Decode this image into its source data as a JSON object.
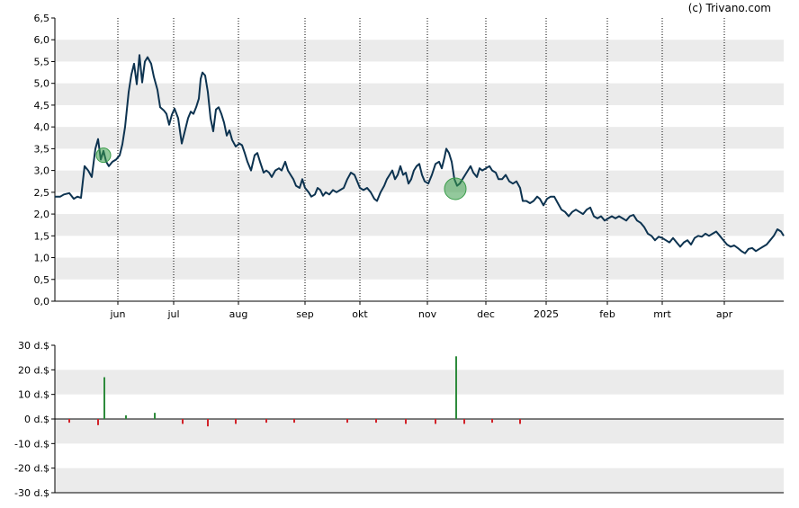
{
  "watermark": "(c) Trivano.com",
  "chart_data": [
    {
      "type": "line",
      "grid": true,
      "ylim": [
        0,
        6.5
      ],
      "y_ticks": [
        "0,0",
        "0,5",
        "1,0",
        "1,5",
        "2,0",
        "2,5",
        "3,0",
        "3,5",
        "4,0",
        "4,5",
        "5,0",
        "5,5",
        "6,0",
        "6,5"
      ],
      "x_ticks": [
        {
          "label": "jun",
          "t": 70
        },
        {
          "label": "jul",
          "t": 132
        },
        {
          "label": "aug",
          "t": 204
        },
        {
          "label": "sep",
          "t": 278
        },
        {
          "label": "okt",
          "t": 339
        },
        {
          "label": "nov",
          "t": 414
        },
        {
          "label": "dec",
          "t": 479
        },
        {
          "label": "2025",
          "t": 546
        },
        {
          "label": "feb",
          "t": 614
        },
        {
          "label": "mrt",
          "t": 675
        },
        {
          "label": "apr",
          "t": 744
        }
      ],
      "t_range": [
        0,
        810
      ],
      "series": [
        {
          "color": "#0d3350",
          "points": [
            [
              0,
              2.4
            ],
            [
              6,
              2.4
            ],
            [
              10,
              2.45
            ],
            [
              16,
              2.48
            ],
            [
              21,
              2.35
            ],
            [
              25,
              2.4
            ],
            [
              29,
              2.37
            ],
            [
              33,
              3.1
            ],
            [
              37,
              3.0
            ],
            [
              41,
              2.85
            ],
            [
              45,
              3.5
            ],
            [
              48,
              3.72
            ],
            [
              51,
              3.25
            ],
            [
              54,
              3.45
            ],
            [
              57,
              3.2
            ],
            [
              60,
              3.1
            ],
            [
              64,
              3.2
            ],
            [
              68,
              3.25
            ],
            [
              72,
              3.35
            ],
            [
              75,
              3.6
            ],
            [
              78,
              4.0
            ],
            [
              82,
              4.8
            ],
            [
              85,
              5.2
            ],
            [
              88,
              5.45
            ],
            [
              91,
              4.98
            ],
            [
              94,
              5.65
            ],
            [
              97,
              5.02
            ],
            [
              100,
              5.5
            ],
            [
              103,
              5.6
            ],
            [
              107,
              5.45
            ],
            [
              110,
              5.15
            ],
            [
              114,
              4.85
            ],
            [
              117,
              4.45
            ],
            [
              121,
              4.38
            ],
            [
              124,
              4.3
            ],
            [
              127,
              4.05
            ],
            [
              130,
              4.28
            ],
            [
              133,
              4.42
            ],
            [
              137,
              4.2
            ],
            [
              141,
              3.62
            ],
            [
              145,
              3.95
            ],
            [
              148,
              4.2
            ],
            [
              151,
              4.35
            ],
            [
              154,
              4.3
            ],
            [
              157,
              4.45
            ],
            [
              160,
              4.65
            ],
            [
              162,
              5.1
            ],
            [
              164,
              5.25
            ],
            [
              167,
              5.18
            ],
            [
              170,
              4.8
            ],
            [
              173,
              4.2
            ],
            [
              176,
              3.9
            ],
            [
              179,
              4.4
            ],
            [
              182,
              4.45
            ],
            [
              185,
              4.3
            ],
            [
              188,
              4.1
            ],
            [
              191,
              3.8
            ],
            [
              194,
              3.92
            ],
            [
              197,
              3.7
            ],
            [
              201,
              3.55
            ],
            [
              205,
              3.62
            ],
            [
              208,
              3.58
            ],
            [
              211,
              3.4
            ],
            [
              214,
              3.2
            ],
            [
              218,
              3.0
            ],
            [
              222,
              3.35
            ],
            [
              225,
              3.4
            ],
            [
              228,
              3.2
            ],
            [
              232,
              2.95
            ],
            [
              235,
              3.0
            ],
            [
              238,
              2.95
            ],
            [
              241,
              2.85
            ],
            [
              245,
              3.0
            ],
            [
              249,
              3.05
            ],
            [
              252,
              3.0
            ],
            [
              256,
              3.2
            ],
            [
              259,
              3.0
            ],
            [
              262,
              2.9
            ],
            [
              265,
              2.8
            ],
            [
              268,
              2.65
            ],
            [
              272,
              2.6
            ],
            [
              275,
              2.8
            ],
            [
              278,
              2.6
            ],
            [
              282,
              2.5
            ],
            [
              285,
              2.4
            ],
            [
              289,
              2.45
            ],
            [
              292,
              2.6
            ],
            [
              295,
              2.55
            ],
            [
              298,
              2.42
            ],
            [
              301,
              2.5
            ],
            [
              305,
              2.45
            ],
            [
              309,
              2.55
            ],
            [
              313,
              2.5
            ],
            [
              317,
              2.55
            ],
            [
              321,
              2.6
            ],
            [
              325,
              2.8
            ],
            [
              329,
              2.95
            ],
            [
              333,
              2.9
            ],
            [
              336,
              2.75
            ],
            [
              339,
              2.6
            ],
            [
              343,
              2.55
            ],
            [
              347,
              2.6
            ],
            [
              351,
              2.5
            ],
            [
              355,
              2.35
            ],
            [
              358,
              2.3
            ],
            [
              362,
              2.5
            ],
            [
              366,
              2.65
            ],
            [
              369,
              2.8
            ],
            [
              372,
              2.9
            ],
            [
              375,
              3.0
            ],
            [
              378,
              2.8
            ],
            [
              381,
              2.9
            ],
            [
              384,
              3.1
            ],
            [
              387,
              2.9
            ],
            [
              390,
              2.95
            ],
            [
              393,
              2.7
            ],
            [
              396,
              2.8
            ],
            [
              399,
              3.0
            ],
            [
              402,
              3.1
            ],
            [
              405,
              3.15
            ],
            [
              408,
              2.9
            ],
            [
              411,
              2.75
            ],
            [
              415,
              2.7
            ],
            [
              419,
              2.9
            ],
            [
              423,
              3.15
            ],
            [
              427,
              3.2
            ],
            [
              430,
              3.05
            ],
            [
              433,
              3.3
            ],
            [
              435,
              3.5
            ],
            [
              438,
              3.4
            ],
            [
              441,
              3.2
            ],
            [
              444,
              2.8
            ],
            [
              447,
              2.65
            ],
            [
              450,
              2.7
            ],
            [
              453,
              2.8
            ],
            [
              456,
              2.9
            ],
            [
              459,
              3.0
            ],
            [
              462,
              3.1
            ],
            [
              465,
              2.95
            ],
            [
              469,
              2.85
            ],
            [
              472,
              3.05
            ],
            [
              475,
              3.0
            ],
            [
              479,
              3.05
            ],
            [
              483,
              3.1
            ],
            [
              486,
              3.0
            ],
            [
              490,
              2.95
            ],
            [
              493,
              2.8
            ],
            [
              497,
              2.8
            ],
            [
              501,
              2.9
            ],
            [
              505,
              2.75
            ],
            [
              509,
              2.7
            ],
            [
              513,
              2.75
            ],
            [
              517,
              2.6
            ],
            [
              520,
              2.3
            ],
            [
              524,
              2.3
            ],
            [
              528,
              2.25
            ],
            [
              532,
              2.3
            ],
            [
              536,
              2.4
            ],
            [
              539,
              2.35
            ],
            [
              543,
              2.2
            ],
            [
              547,
              2.35
            ],
            [
              551,
              2.4
            ],
            [
              555,
              2.4
            ],
            [
              559,
              2.25
            ],
            [
              563,
              2.1
            ],
            [
              567,
              2.05
            ],
            [
              571,
              1.95
            ],
            [
              575,
              2.05
            ],
            [
              579,
              2.1
            ],
            [
              583,
              2.05
            ],
            [
              587,
              2.0
            ],
            [
              591,
              2.1
            ],
            [
              595,
              2.15
            ],
            [
              599,
              1.95
            ],
            [
              603,
              1.9
            ],
            [
              607,
              1.95
            ],
            [
              611,
              1.85
            ],
            [
              615,
              1.9
            ],
            [
              619,
              1.95
            ],
            [
              623,
              1.9
            ],
            [
              627,
              1.95
            ],
            [
              631,
              1.9
            ],
            [
              635,
              1.85
            ],
            [
              639,
              1.95
            ],
            [
              643,
              1.98
            ],
            [
              647,
              1.85
            ],
            [
              651,
              1.8
            ],
            [
              655,
              1.7
            ],
            [
              659,
              1.55
            ],
            [
              663,
              1.5
            ],
            [
              667,
              1.4
            ],
            [
              671,
              1.48
            ],
            [
              675,
              1.45
            ],
            [
              679,
              1.4
            ],
            [
              683,
              1.35
            ],
            [
              687,
              1.45
            ],
            [
              691,
              1.35
            ],
            [
              695,
              1.25
            ],
            [
              699,
              1.35
            ],
            [
              703,
              1.4
            ],
            [
              707,
              1.3
            ],
            [
              711,
              1.45
            ],
            [
              715,
              1.5
            ],
            [
              719,
              1.48
            ],
            [
              723,
              1.55
            ],
            [
              727,
              1.5
            ],
            [
              731,
              1.55
            ],
            [
              735,
              1.6
            ],
            [
              739,
              1.5
            ],
            [
              743,
              1.4
            ],
            [
              747,
              1.3
            ],
            [
              751,
              1.25
            ],
            [
              755,
              1.28
            ],
            [
              759,
              1.22
            ],
            [
              763,
              1.15
            ],
            [
              767,
              1.1
            ],
            [
              771,
              1.2
            ],
            [
              775,
              1.22
            ],
            [
              779,
              1.15
            ],
            [
              783,
              1.2
            ],
            [
              787,
              1.25
            ],
            [
              791,
              1.3
            ],
            [
              795,
              1.4
            ],
            [
              799,
              1.5
            ],
            [
              803,
              1.65
            ],
            [
              807,
              1.6
            ],
            [
              810,
              1.5
            ]
          ]
        }
      ],
      "markers": [
        {
          "t": 54,
          "value": 3.35,
          "size": "small",
          "color": "#3a9d4a"
        },
        {
          "t": 445,
          "value": 2.58,
          "size": "large",
          "color": "#3a9d4a"
        }
      ]
    },
    {
      "type": "bar",
      "grid": true,
      "ylim": [
        -30,
        30
      ],
      "y_ticks": [
        "-30 d.$",
        "-20 d.$",
        "-10 d.$",
        "0 d.$",
        "10 d.$",
        "20 d.$",
        "30 d.$"
      ],
      "positive_color": "#2e8b3c",
      "negative_color": "#d2232a",
      "bars": [
        {
          "t": 16,
          "value": -1.5
        },
        {
          "t": 48,
          "value": -2.5
        },
        {
          "t": 55,
          "value": 17
        },
        {
          "t": 79,
          "value": 1.5
        },
        {
          "t": 111,
          "value": 2.5
        },
        {
          "t": 142,
          "value": -2
        },
        {
          "t": 170,
          "value": -3
        },
        {
          "t": 201,
          "value": -2
        },
        {
          "t": 235,
          "value": -1.5
        },
        {
          "t": 266,
          "value": -1.5
        },
        {
          "t": 325,
          "value": -1.5
        },
        {
          "t": 357,
          "value": -1.5
        },
        {
          "t": 390,
          "value": -2
        },
        {
          "t": 423,
          "value": -2
        },
        {
          "t": 446,
          "value": 25.5
        },
        {
          "t": 455,
          "value": -2
        },
        {
          "t": 486,
          "value": -1.5
        },
        {
          "t": 517,
          "value": -2
        }
      ]
    }
  ]
}
